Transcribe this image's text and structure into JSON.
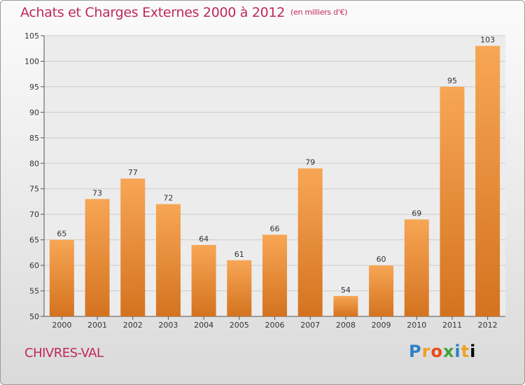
{
  "title": "Achats et Charges Externes 2000 à 2012",
  "unit": "(en milliers d'€)",
  "place": "CHIVRES-VAL",
  "logo_letters": [
    "P",
    "r",
    "o",
    "x",
    "i",
    "t",
    "i"
  ],
  "colors": {
    "bar_light": "#f7a655",
    "bar_dark": "#d4731f",
    "title": "#c0285a",
    "grid": "#cccccc"
  },
  "chart_data": {
    "type": "bar",
    "title": "Achats et Charges Externes 2000 à 2012",
    "subtitle": "(en milliers d'€)",
    "xlabel": "",
    "ylabel": "",
    "categories": [
      "2000",
      "2001",
      "2002",
      "2003",
      "2004",
      "2005",
      "2006",
      "2007",
      "2008",
      "2009",
      "2010",
      "2011",
      "2012"
    ],
    "values": [
      65,
      73,
      77,
      72,
      64,
      61,
      66,
      79,
      54,
      60,
      69,
      95,
      103
    ],
    "ylim": [
      50,
      105
    ],
    "yticks": [
      50,
      55,
      60,
      65,
      70,
      75,
      80,
      85,
      90,
      95,
      100,
      105
    ],
    "grid": true,
    "legend": "none"
  }
}
